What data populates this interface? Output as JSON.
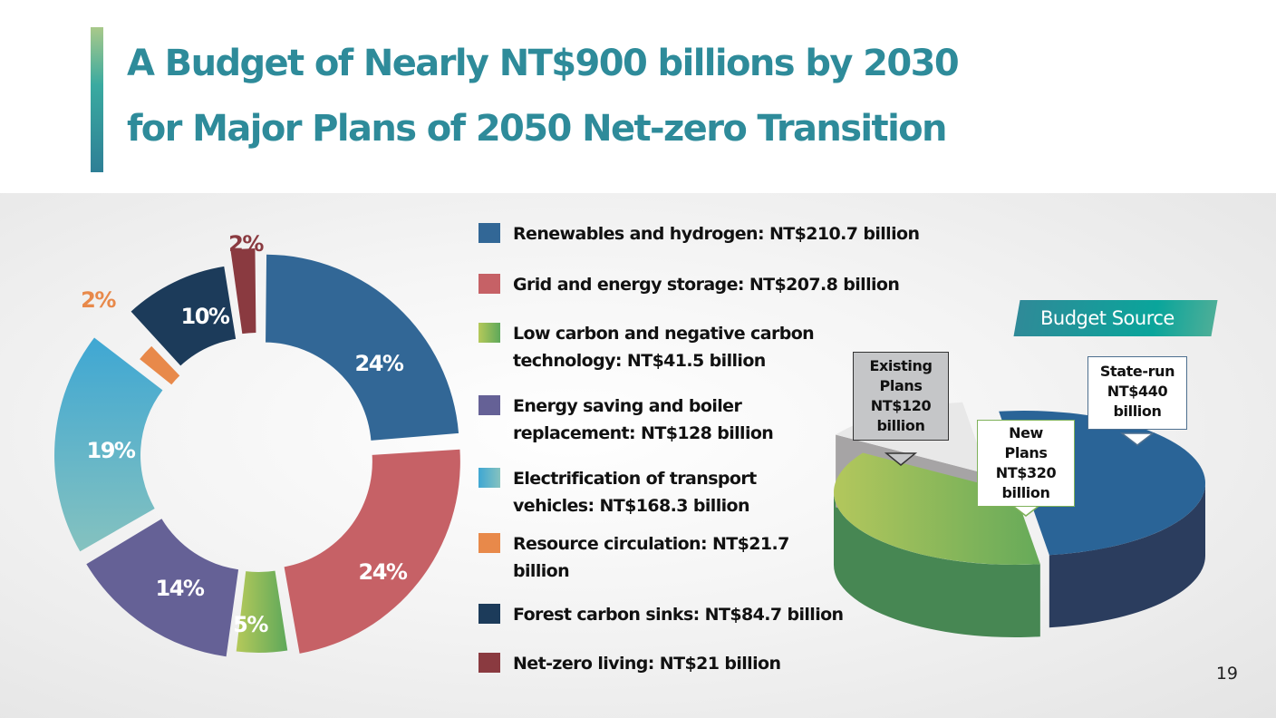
{
  "title": {
    "line1": "A Budget of Nearly NT$900 billions by 2030",
    "line2": "for Major Plans of 2050 Net-zero Transition"
  },
  "page_number": "19",
  "chart_data": [
    {
      "type": "pie",
      "subtype": "donut",
      "title": "",
      "categories": [
        "Renewables and hydrogen",
        "Grid and energy storage",
        "Low carbon and negative carbon technology",
        "Energy saving and boiler replacement",
        "Electrification of transport vehicles",
        "Resource circulation",
        "Forest carbon sinks",
        "Net-zero living"
      ],
      "values": [
        210.7,
        207.8,
        41.5,
        128,
        168.3,
        21.7,
        84.7,
        21
      ],
      "unit": "NT$ billion",
      "percent_labels": [
        "24%",
        "24%",
        "5%",
        "14%",
        "19%",
        "2%",
        "10%",
        "2%"
      ],
      "colors": [
        "#326796",
        "#c66166",
        "#94be5e",
        "#656196",
        "#5bb0cf",
        "#e8894a",
        "#1c3b5a",
        "#8a3a40"
      ],
      "label_colors": [
        "#ffffff",
        "#ffffff",
        "#ffffff",
        "#ffffff",
        "#ffffff",
        "#e8894a",
        "#ffffff",
        "#8a3a40"
      ],
      "legend": {
        "placement": "right",
        "items": [
          "Renewables and hydrogen: NT$210.7 billion",
          "Grid and energy storage: NT$207.8 billion",
          "Low carbon and negative carbon\ntechnology: NT$41.5 billion",
          "Energy saving and boiler\nreplacement: NT$128 billion",
          "Electrification of transport\nvehicles: NT$168.3 billion",
          "Resource circulation: NT$21.7\nbillion",
          "Forest carbon sinks: NT$84.7 billion",
          "Net-zero living: NT$21 billion"
        ]
      }
    },
    {
      "type": "pie",
      "subtype": "3d",
      "title": "Budget Source",
      "categories": [
        "State-run",
        "New Plans",
        "Existing Plans"
      ],
      "values": [
        440,
        320,
        120
      ],
      "unit": "NT$ billion",
      "callouts": [
        "State-run\nNT$440\nbillion",
        "New\nPlans\nNT$320\nbillion",
        "Existing\nPlans\nNT$120\nbillion"
      ],
      "colors": [
        "#2a6497",
        "#6aa84f",
        "#e6e6e6"
      ],
      "side_colors": [
        "#2b3d5e",
        "#478753",
        "#a4a2a3"
      ]
    }
  ]
}
